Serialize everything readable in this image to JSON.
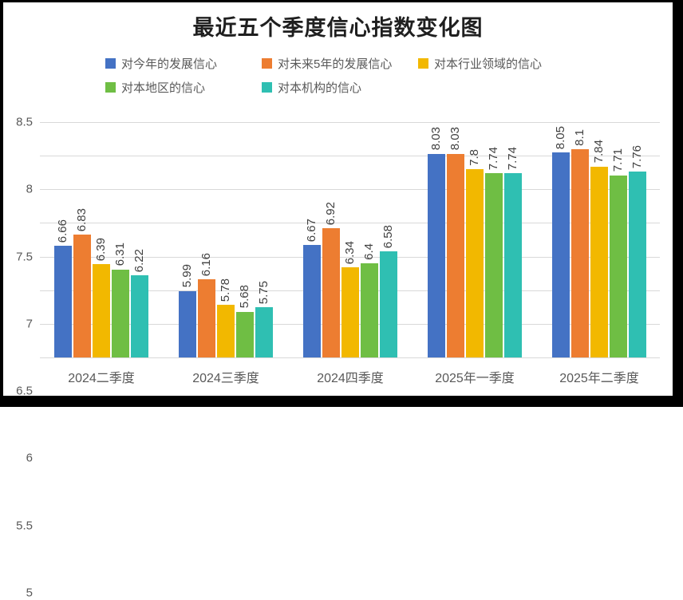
{
  "frame": {
    "border_color": "#000000",
    "background": "#FFFFFF"
  },
  "chart_data": {
    "type": "bar",
    "title": "最近五个季度信心指数变化图",
    "categories": [
      "2024二季度",
      "2024三季度",
      "2024四季度",
      "2025年一季度",
      "2025年二季度"
    ],
    "series": [
      {
        "name": "对今年的发展信心",
        "color": "#4472C4",
        "values": [
          6.66,
          5.99,
          6.67,
          8.03,
          8.05
        ]
      },
      {
        "name": "对未来5年的发展信心",
        "color": "#ED7D31",
        "values": [
          6.83,
          6.16,
          6.92,
          8.03,
          8.1
        ]
      },
      {
        "name": "对本行业领域的信心",
        "color": "#F2B800",
        "values": [
          6.39,
          5.78,
          6.34,
          7.8,
          7.84
        ]
      },
      {
        "name": "对本地区的信心",
        "color": "#6FBE44",
        "values": [
          6.31,
          5.68,
          6.4,
          7.74,
          7.71
        ]
      },
      {
        "name": "对本机构的信心",
        "color": "#2FBFB2",
        "values": [
          6.22,
          5.75,
          6.58,
          7.74,
          7.76
        ]
      }
    ],
    "ylim": [
      5,
      8.5
    ],
    "ytick_step": 0.5,
    "yticks": [
      "5",
      "5.5",
      "6",
      "6.5",
      "7",
      "7.5",
      "8",
      "8.5"
    ],
    "grid": true,
    "legend_position": "top-left, two rows",
    "data_labels": "values rotated 90° (reading bottom-up) above each bar",
    "styles": {
      "gridline_color": "#D9D9D9",
      "axis_text_color": "#595959",
      "legend_text_color": "#595959",
      "value_label_color": "#404040",
      "title_color": "#1F1F1F"
    }
  }
}
